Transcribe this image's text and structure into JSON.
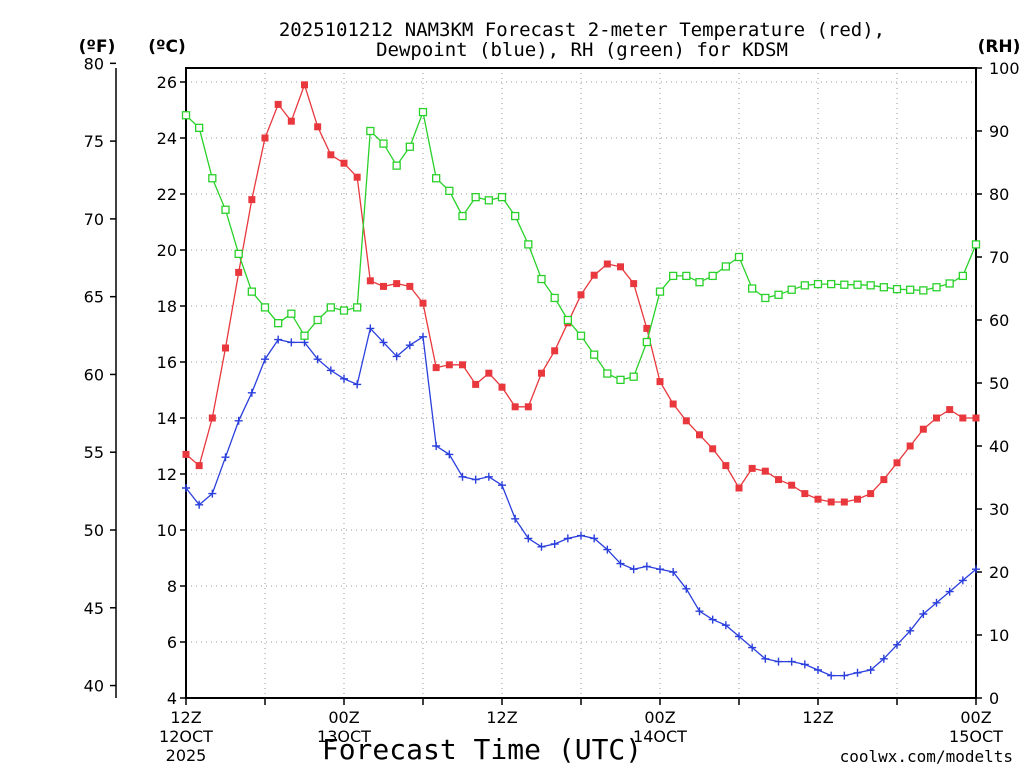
{
  "title_line1": "2025101212 NAM3KM Forecast 2-meter Temperature (red),",
  "title_line2": "Dewpoint (blue), RH (green) for KDSM",
  "units": {
    "f": "(ºF)",
    "c": "(ºC)",
    "rh": "(RH)"
  },
  "xaxis_title": "Forecast Time (UTC)",
  "credit": "coolwx.com/modelts",
  "colors": {
    "temp": "#e8383d",
    "dew": "#2a3fdc",
    "rh": "#2ad12a",
    "credit": "#e8383d",
    "grid": "#999999"
  },
  "chart_data": {
    "type": "line",
    "title": "2025101212 NAM3KM Forecast 2-meter Temperature (red), Dewpoint (blue), RH (green) for KDSM",
    "xlabel": "Forecast Time (UTC)",
    "x": [
      0,
      1,
      2,
      3,
      4,
      5,
      6,
      7,
      8,
      9,
      10,
      11,
      12,
      13,
      14,
      15,
      16,
      17,
      18,
      19,
      20,
      21,
      22,
      23,
      24,
      25,
      26,
      27,
      28,
      29,
      30,
      31,
      32,
      33,
      34,
      35,
      36,
      37,
      38,
      39,
      40,
      41,
      42,
      43,
      44,
      45,
      46,
      47,
      48,
      49,
      50,
      51,
      52,
      53,
      54,
      55,
      56,
      57,
      58,
      59,
      60
    ],
    "x_unit": "hours since 2025101212",
    "xlim": [
      0,
      60
    ],
    "x_ticks": [
      {
        "x": 0,
        "line1": "12Z",
        "line2": "12OCT",
        "line3": "2025"
      },
      {
        "x": 12,
        "line1": "00Z",
        "line2": "13OCT",
        "line3": ""
      },
      {
        "x": 24,
        "line1": "12Z",
        "line2": "",
        "line3": ""
      },
      {
        "x": 36,
        "line1": "00Z",
        "line2": "14OCT",
        "line3": ""
      },
      {
        "x": 48,
        "line1": "12Z",
        "line2": "",
        "line3": ""
      },
      {
        "x": 60,
        "line1": "00Z",
        "line2": "15OCT",
        "line3": ""
      }
    ],
    "y_celsius": {
      "label": "(ºC)",
      "ylim": [
        4,
        26.5
      ],
      "ticks": [
        "4",
        "6",
        "8",
        "10",
        "12",
        "14",
        "16",
        "18",
        "20",
        "22",
        "24",
        "26"
      ]
    },
    "y_fahrenheit": {
      "label": "(ºF)",
      "ylim": [
        39.2,
        79.7
      ],
      "ticks": [
        "40",
        "45",
        "50",
        "55",
        "60",
        "65",
        "70",
        "75",
        "80"
      ]
    },
    "y_rh": {
      "label": "(RH)",
      "ylim": [
        0,
        100
      ],
      "ticks": [
        "0",
        "10",
        "20",
        "30",
        "40",
        "50",
        "60",
        "70",
        "80",
        "90",
        "100"
      ]
    },
    "series": [
      {
        "name": "2-meter Temperature",
        "unit": "C",
        "color": "red",
        "marker": "filled-square",
        "values": [
          12.7,
          12.3,
          14.0,
          16.5,
          19.2,
          21.8,
          24.0,
          25.2,
          24.6,
          25.9,
          24.4,
          23.4,
          23.1,
          22.6,
          18.9,
          18.7,
          18.8,
          18.7,
          18.1,
          15.8,
          15.9,
          15.9,
          15.2,
          15.6,
          15.1,
          14.4,
          14.4,
          15.6,
          16.4,
          17.4,
          18.4,
          19.1,
          19.5,
          19.4,
          18.8,
          17.2,
          15.3,
          14.5,
          13.9,
          13.4,
          12.9,
          12.3,
          11.5,
          12.2,
          12.1,
          11.8,
          11.6,
          11.3,
          11.1,
          11.0,
          11.0,
          11.1,
          11.3,
          11.8,
          12.4,
          13.0,
          13.6,
          14.0,
          14.3,
          14.0,
          14.0
        ]
      },
      {
        "name": "Dewpoint",
        "unit": "C",
        "color": "blue",
        "marker": "plus",
        "values": [
          11.5,
          10.9,
          11.3,
          12.6,
          13.9,
          14.9,
          16.1,
          16.8,
          16.7,
          16.7,
          16.1,
          15.7,
          15.4,
          15.2,
          17.2,
          16.7,
          16.2,
          16.6,
          16.9,
          13.0,
          12.7,
          11.9,
          11.8,
          11.9,
          11.6,
          10.4,
          9.7,
          9.4,
          9.5,
          9.7,
          9.8,
          9.7,
          9.3,
          8.8,
          8.6,
          8.7,
          8.6,
          8.5,
          7.9,
          7.1,
          6.8,
          6.6,
          6.2,
          5.8,
          5.4,
          5.3,
          5.3,
          5.2,
          5.0,
          4.8,
          4.8,
          4.9,
          5.0,
          5.4,
          5.9,
          6.4,
          7.0,
          7.4,
          7.8,
          8.2,
          8.6
        ]
      },
      {
        "name": "RH",
        "unit": "%",
        "color": "green",
        "marker": "open-square",
        "values": [
          92.5,
          90.5,
          82.5,
          77.5,
          70.5,
          64.5,
          62.0,
          59.5,
          61.0,
          57.5,
          60.0,
          62.0,
          61.5,
          62.0,
          90.0,
          88.0,
          84.5,
          87.5,
          93.0,
          82.5,
          80.5,
          76.5,
          79.5,
          79.0,
          79.5,
          76.5,
          72.0,
          66.5,
          63.5,
          60.0,
          57.5,
          54.5,
          51.5,
          50.5,
          51.0,
          56.5,
          64.5,
          67.0,
          67.0,
          66.0,
          67.0,
          68.5,
          70.0,
          65.0,
          63.5,
          64.0,
          64.8,
          65.5,
          65.7,
          65.7,
          65.6,
          65.6,
          65.5,
          65.2,
          64.9,
          64.8,
          64.7,
          65.2,
          65.8,
          67.0,
          72.0
        ]
      }
    ]
  }
}
